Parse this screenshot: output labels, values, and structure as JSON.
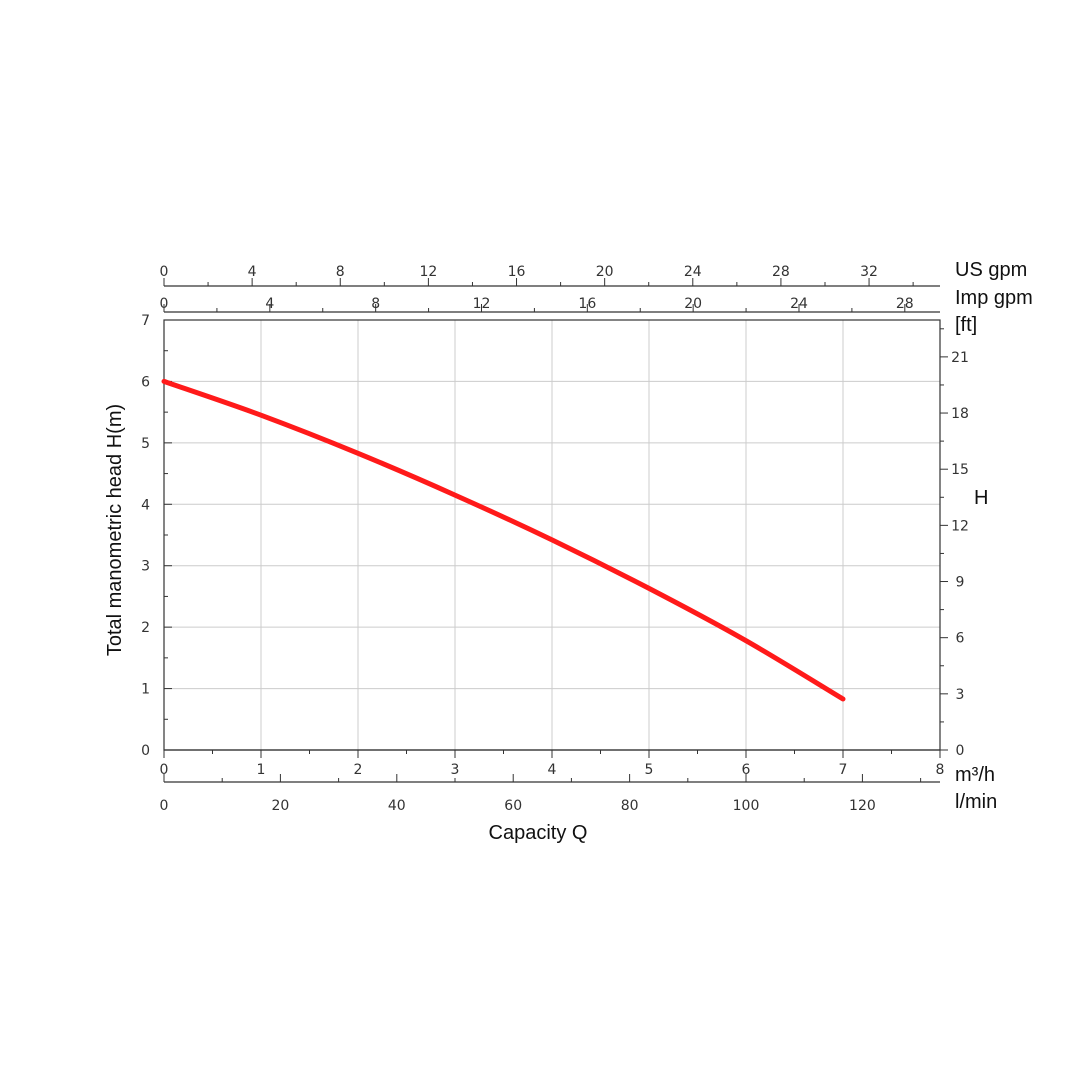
{
  "chart_data": {
    "type": "line",
    "ylabel": "Total manometric head H(m)",
    "xlabel": "Capacity Q",
    "right_axis_title": "H",
    "grid": true,
    "colors": {
      "curve": "#ff1a1a",
      "grid": "#cccccc",
      "axis": "#333333"
    },
    "x_axes": [
      {
        "id": "m3h",
        "unit": "m³/h",
        "position": "bottom",
        "range": [
          0,
          8
        ],
        "ticks": [
          "0",
          "1",
          "2",
          "3",
          "4",
          "5",
          "6",
          "7",
          "8"
        ]
      },
      {
        "id": "lmin",
        "unit": "l/min",
        "position": "bottom",
        "range": [
          0,
          133.33
        ],
        "ticks": [
          "0",
          "20",
          "40",
          "60",
          "80",
          "100",
          "120"
        ]
      },
      {
        "id": "impgpm",
        "unit": "Imp gpm",
        "position": "top",
        "range": [
          0,
          29.33
        ],
        "ticks": [
          "0",
          "4",
          "8",
          "12",
          "16",
          "20",
          "24",
          "28"
        ]
      },
      {
        "id": "usgpm",
        "unit": "US gpm",
        "position": "top",
        "range": [
          0,
          35.22
        ],
        "ticks": [
          "0",
          "4",
          "8",
          "12",
          "16",
          "20",
          "24",
          "28",
          "32"
        ]
      }
    ],
    "y_axes": [
      {
        "id": "m",
        "position": "left",
        "range": [
          0,
          7
        ],
        "ticks": [
          "0",
          "1",
          "2",
          "3",
          "4",
          "5",
          "6",
          "7"
        ]
      },
      {
        "id": "ft",
        "unit": "[ft]",
        "position": "right",
        "range": [
          0,
          22.97
        ],
        "ticks": [
          "0",
          "3",
          "6",
          "9",
          "12",
          "15",
          "18",
          "21"
        ]
      }
    ],
    "series": [
      {
        "x": [
          0,
          1,
          2,
          3,
          4,
          5,
          6,
          7
        ],
        "y": [
          6.0,
          5.45,
          4.83,
          4.15,
          3.42,
          2.63,
          1.78,
          0.83
        ]
      }
    ]
  }
}
